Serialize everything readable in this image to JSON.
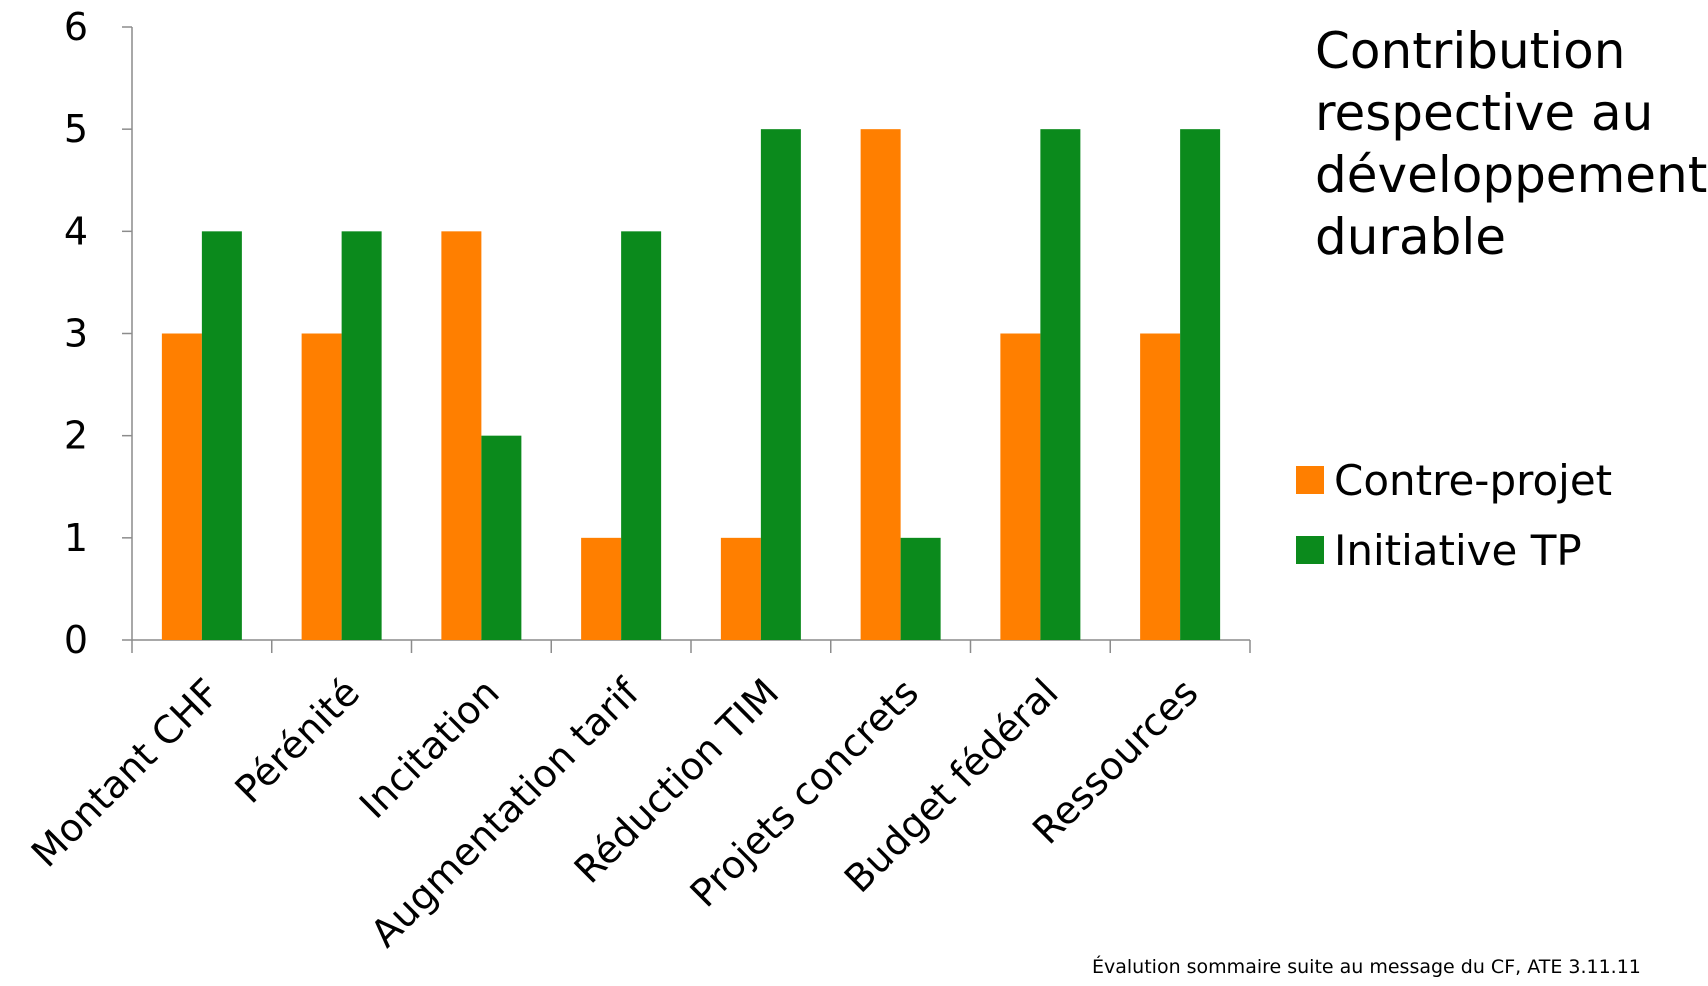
{
  "chart_data": {
    "type": "bar",
    "title_lines": [
      "Contribution",
      "respective au",
      "développement",
      "durable"
    ],
    "categories": [
      "Montant CHF",
      "Pérénité",
      "Incitation",
      "Augmentation tarif",
      "Réduction TIM",
      "Projets concrets",
      "Budget fédéral",
      "Ressources"
    ],
    "series": [
      {
        "name": "Contre-projet",
        "values": [
          3,
          3,
          4,
          1,
          1,
          5,
          3,
          3
        ],
        "color": "#ff7f00"
      },
      {
        "name": "Initiative TP",
        "values": [
          4,
          4,
          2,
          4,
          5,
          1,
          5,
          5
        ],
        "color": "#0b8a1c"
      }
    ],
    "ylim": [
      0,
      6
    ],
    "yticks": [
      "0",
      "1",
      "2",
      "3",
      "4",
      "5",
      "6"
    ],
    "grid": false,
    "legend_position": "right"
  },
  "footnote": "Évalution sommaire suite au message du CF, ATE 3.11.11"
}
